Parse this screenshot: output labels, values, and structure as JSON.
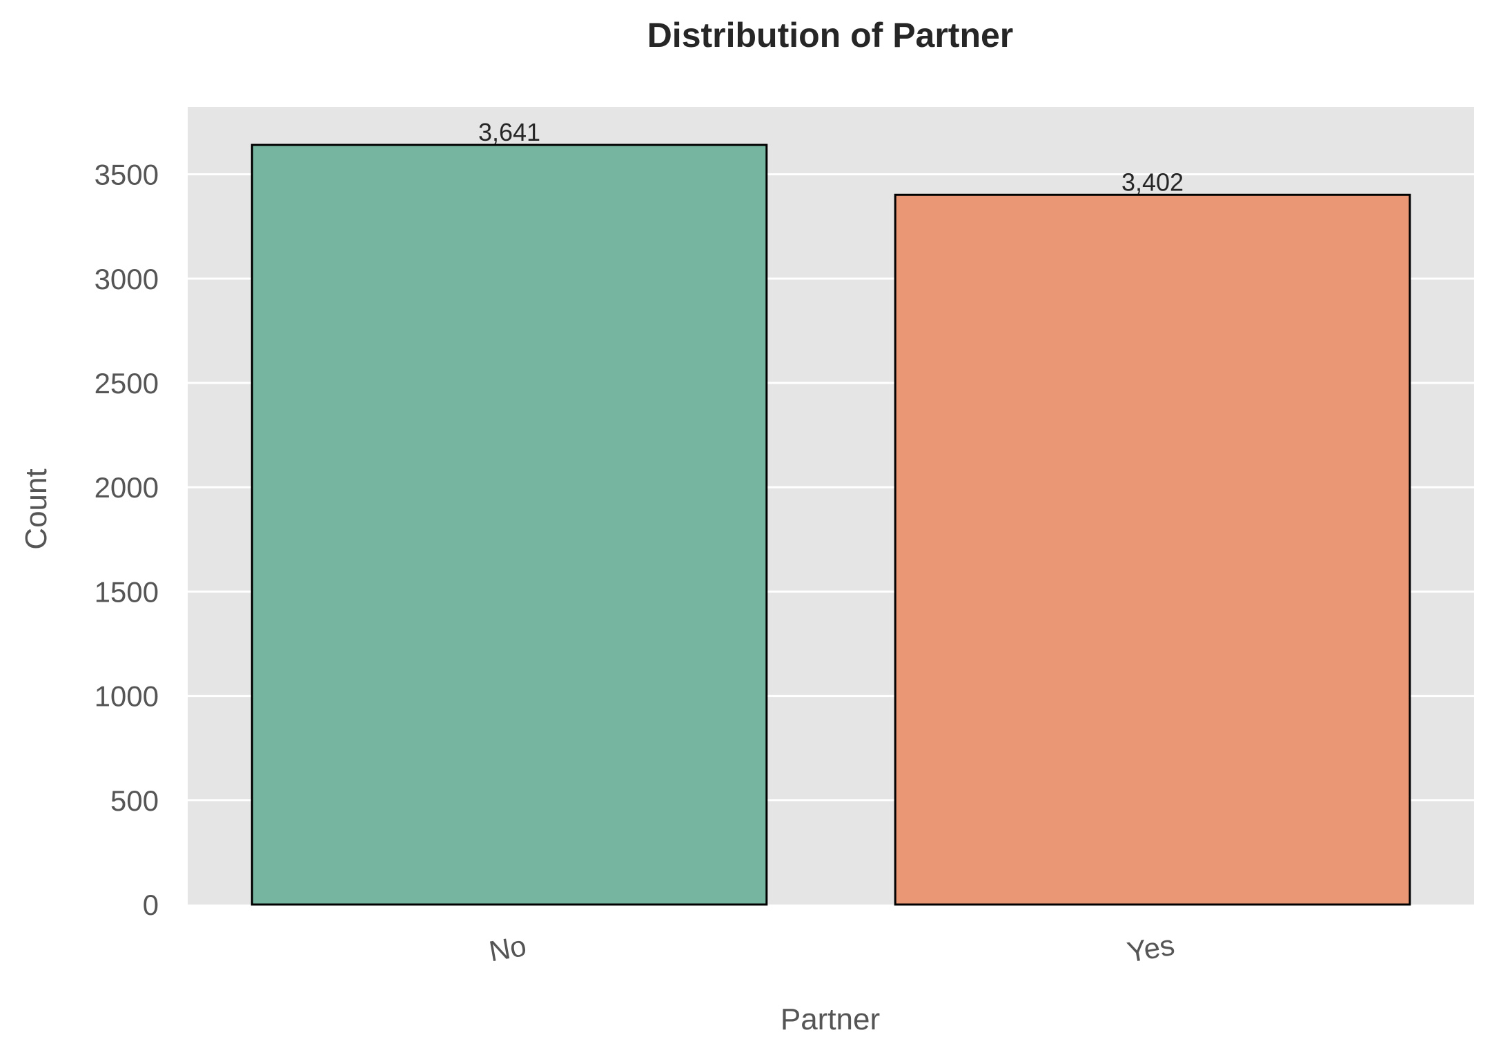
{
  "chart_data": {
    "type": "bar",
    "title": "Distribution of Partner",
    "xlabel": "Partner",
    "ylabel": "Count",
    "categories": [
      "No",
      "Yes"
    ],
    "values": [
      3641,
      3402
    ],
    "value_labels": [
      "3,641",
      "3,402"
    ],
    "ylim": [
      0,
      3823
    ],
    "yticks": [
      0,
      500,
      1000,
      1500,
      2000,
      2500,
      3000,
      3500
    ],
    "ytick_labels": [
      "0",
      "500",
      "1000",
      "1500",
      "2000",
      "2500",
      "3000",
      "3500"
    ],
    "grid": "horizontal",
    "legend": "none",
    "colors": {
      "bars": [
        "#76b5a0",
        "#e99775"
      ],
      "bar_edge": "#000000",
      "plot_background": "#e5e5e5",
      "grid": "#ffffff"
    }
  }
}
